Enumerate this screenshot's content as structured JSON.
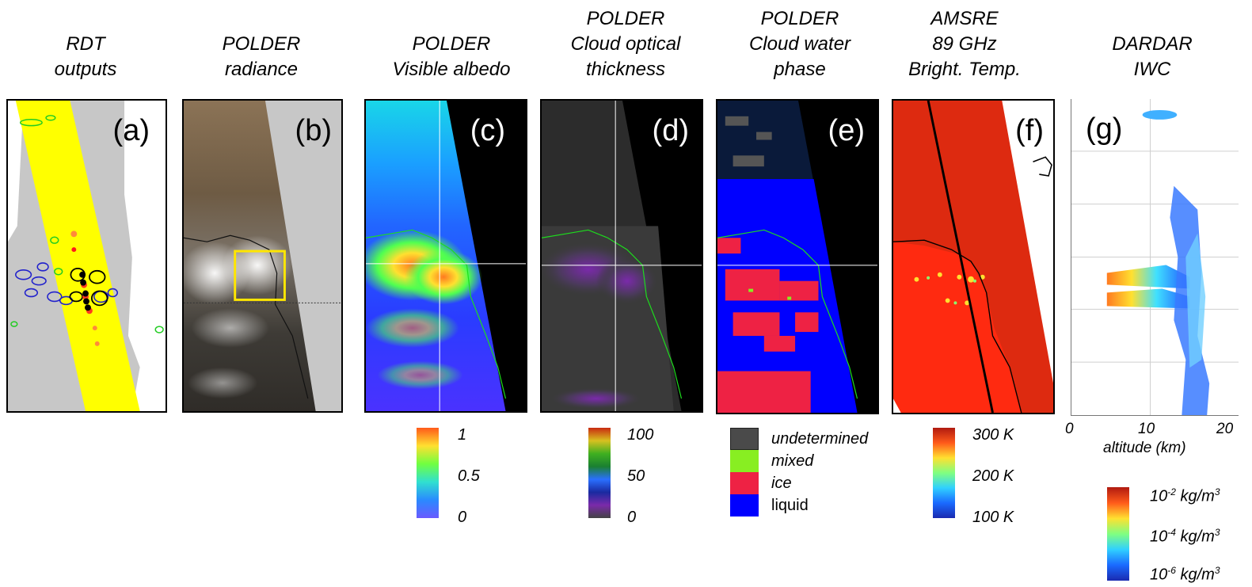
{
  "titles": [
    {
      "lines": [
        "RDT",
        "outputs"
      ]
    },
    {
      "lines": [
        "POLDER",
        "radiance"
      ]
    },
    {
      "lines": [
        "POLDER",
        "Visible albedo"
      ]
    },
    {
      "lines": [
        "POLDER",
        "Cloud optical",
        "thickness"
      ]
    },
    {
      "lines": [
        "POLDER",
        "Cloud water",
        "phase"
      ]
    },
    {
      "lines": [
        "AMSRE",
        "89 GHz",
        "Bright. Temp."
      ]
    },
    {
      "lines": [
        "DARDAR",
        "IWC"
      ]
    }
  ],
  "panels": {
    "a": {
      "label": "(a)"
    },
    "b": {
      "label": "(b)"
    },
    "c": {
      "label": "(c)"
    },
    "d": {
      "label": "(d)"
    },
    "e": {
      "label": "(e)"
    },
    "f": {
      "label": "(f)"
    },
    "g": {
      "label": "(g)"
    }
  },
  "colorbars": {
    "albedo": {
      "ticks": [
        "1",
        "0.5",
        "0"
      ]
    },
    "cot": {
      "ticks": [
        "100",
        "50",
        "0"
      ]
    },
    "bt": {
      "ticks": [
        "300 K",
        "200 K",
        "100 K"
      ]
    },
    "iwc": {
      "ticks": [
        {
          "base": "10",
          "exp": "-2",
          "unit": "kg/m",
          "unit_exp": "3"
        },
        {
          "base": "10",
          "exp": "-4",
          "unit": "kg/m",
          "unit_exp": "3"
        },
        {
          "base": "10",
          "exp": "-6",
          "unit": "kg/m",
          "unit_exp": "3"
        }
      ]
    }
  },
  "phase_legend": [
    {
      "label": "undetermined",
      "color": "#4a4a4a"
    },
    {
      "label": "mixed",
      "color": "#88ee22"
    },
    {
      "label": "ice",
      "color": "#ee2244"
    },
    {
      "label": "liquid",
      "color": "#0000ff"
    }
  ],
  "altitude_axis": {
    "ticks": [
      "0",
      "10",
      "20"
    ],
    "label": "altitude (km)"
  }
}
